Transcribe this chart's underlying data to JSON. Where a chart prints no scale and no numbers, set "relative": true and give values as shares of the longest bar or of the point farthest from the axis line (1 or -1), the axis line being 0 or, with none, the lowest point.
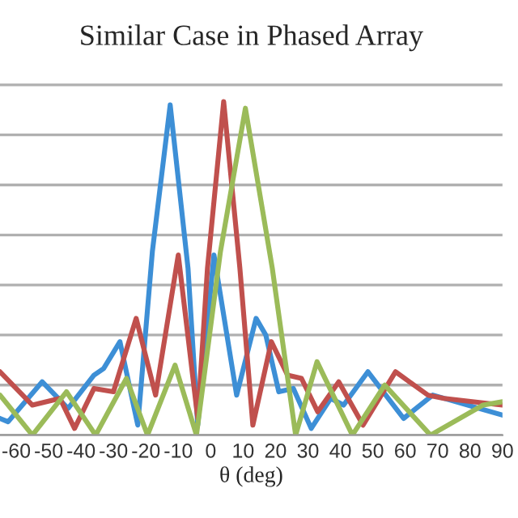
{
  "chart_data": {
    "type": "line",
    "title": "Similar Case in Phased Array",
    "xlabel": "θ (deg)",
    "relative": true,
    "grid": "y",
    "marker": "none",
    "line_style": "solid",
    "xlim": [
      -65,
      90
    ],
    "xticks": [
      -60,
      -50,
      -40,
      -30,
      -20,
      -10,
      0,
      10,
      20,
      30,
      40,
      50,
      60,
      70,
      80,
      90
    ],
    "series": [
      {
        "color": "#3d8fd6",
        "x": [
          -65,
          -62.5,
          -52,
          -44,
          -36,
          -33,
          -28,
          -22.5,
          -18,
          -12.5,
          -7,
          -4,
          1,
          8,
          14,
          17,
          21,
          25.5,
          31,
          37,
          41,
          48.5,
          59.5,
          68.5,
          90
        ],
        "values": [
          0.05,
          0.04,
          0.16,
          0.08,
          0.18,
          0.2,
          0.28,
          0.03,
          0.55,
          0.99,
          0.5,
          0.03,
          0.54,
          0.12,
          0.35,
          0.3,
          0.13,
          0.14,
          0.02,
          0.11,
          0.09,
          0.19,
          0.05,
          0.12,
          0.06
        ]
      },
      {
        "color": "#c0504d",
        "x": [
          -65,
          -55,
          -46.5,
          -42,
          -36,
          -30,
          -23,
          -17,
          -10,
          -4,
          -1,
          4,
          9,
          13,
          18.7,
          23.7,
          28,
          33,
          39.5,
          47,
          57,
          67,
          72,
          90
        ],
        "values": [
          0.19,
          0.09,
          0.11,
          0.02,
          0.14,
          0.13,
          0.35,
          0.12,
          0.54,
          0.05,
          0.5,
          1,
          0.5,
          0.03,
          0.28,
          0.18,
          0.17,
          0.07,
          0.16,
          0.03,
          0.19,
          0.12,
          0.11,
          0.09
        ]
      },
      {
        "color": "#9bbb59",
        "x": [
          -65,
          -55,
          -44.5,
          -35.5,
          -26,
          -19.5,
          -11,
          -4.4,
          3,
          10.7,
          19,
          26.2,
          32.8,
          43.7,
          53.7,
          67.8,
          84,
          90
        ],
        "values": [
          0.12,
          0,
          0.13,
          0,
          0.17,
          0,
          0.21,
          0,
          0.55,
          0.98,
          0.5,
          0,
          0.22,
          0,
          0.15,
          0,
          0.09,
          0.1
        ]
      }
    ]
  }
}
